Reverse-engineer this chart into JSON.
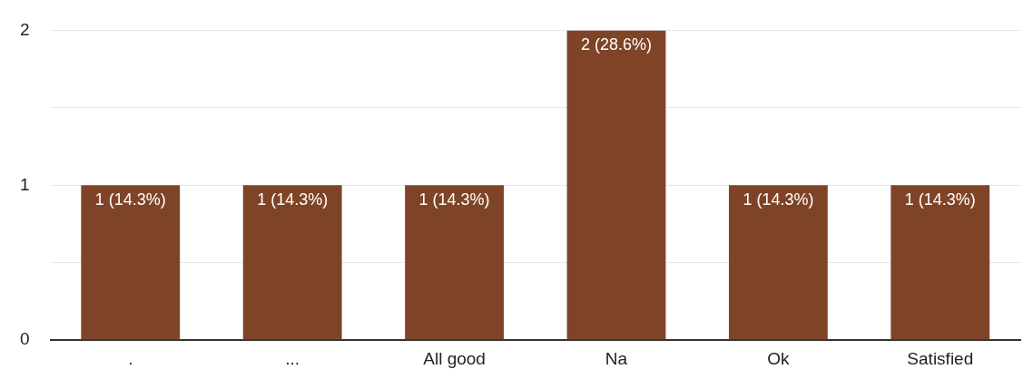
{
  "chart_data": {
    "type": "bar",
    "categories": [
      ".",
      "...",
      "All good",
      "Na",
      "Ok",
      "Satisfied"
    ],
    "values": [
      1,
      1,
      1,
      2,
      1,
      1
    ],
    "value_labels": [
      "1 (14.3%)",
      "1 (14.3%)",
      "1 (14.3%)",
      "2 (28.6%)",
      "1 (14.3%)",
      "1 (14.3%)"
    ],
    "color": "#7f4427",
    "ylim": [
      0,
      2
    ],
    "yticks": [
      0,
      {
        "value": 0.5,
        "label": null
      },
      1,
      {
        "value": 1.5,
        "label": null
      },
      2
    ],
    "grid": "y",
    "legend": false
  }
}
